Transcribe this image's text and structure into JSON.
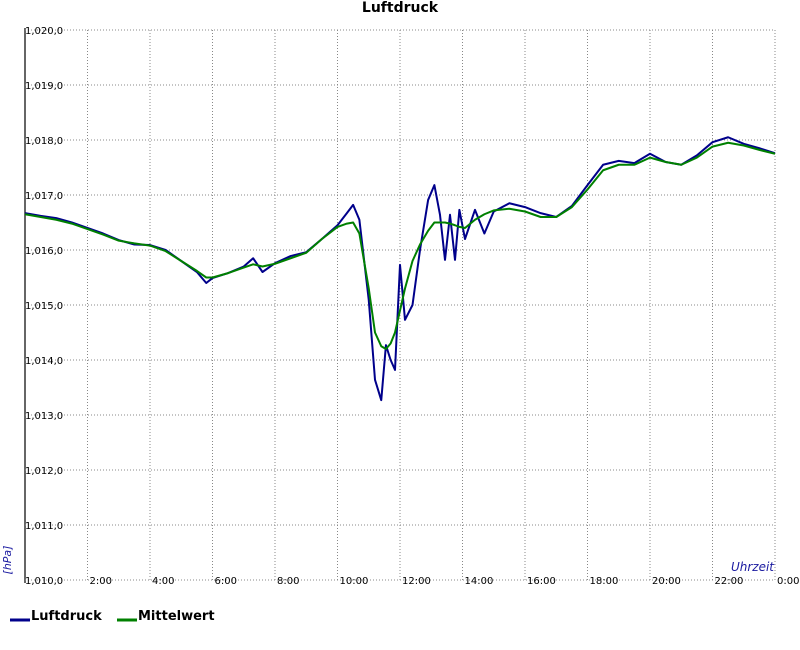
{
  "chart_data": {
    "type": "line",
    "title": "Luftdruck",
    "x_label": "Uhrzeit",
    "y_label": "[hPa]",
    "x": [
      0,
      0.5,
      1,
      1.5,
      2,
      2.5,
      3,
      3.5,
      4,
      4.5,
      5,
      5.5,
      5.8,
      6,
      6.5,
      7,
      7.3,
      7.6,
      8,
      8.5,
      9,
      9.5,
      10,
      10.3,
      10.5,
      10.7,
      11,
      11.2,
      11.4,
      11.55,
      11.7,
      11.84,
      12,
      12.16,
      12.4,
      12.64,
      12.9,
      13.1,
      13.28,
      13.44,
      13.6,
      13.76,
      13.9,
      14.08,
      14.4,
      14.7,
      15,
      15.5,
      16,
      16.5,
      17,
      17.5,
      18,
      18.5,
      19,
      19.5,
      20,
      20.5,
      21,
      21.5,
      22,
      22.5,
      23,
      23.5,
      24
    ],
    "series": [
      {
        "name": "Luftdruck",
        "color": "#00008b",
        "values": [
          1016.67,
          1016.62,
          1016.58,
          1016.5,
          1016.4,
          1016.3,
          1016.18,
          1016.1,
          1016.09,
          1016.0,
          1015.8,
          1015.6,
          1015.4,
          1015.49,
          1015.58,
          1015.7,
          1015.85,
          1015.6,
          1015.76,
          1015.89,
          1015.96,
          1016.2,
          1016.45,
          1016.67,
          1016.82,
          1016.55,
          1015.09,
          1013.64,
          1013.27,
          1014.27,
          1014.0,
          1013.82,
          1015.73,
          1014.73,
          1015.0,
          1016.0,
          1016.91,
          1017.18,
          1016.64,
          1015.82,
          1016.64,
          1015.82,
          1016.73,
          1016.2,
          1016.73,
          1016.3,
          1016.7,
          1016.85,
          1016.78,
          1016.67,
          1016.6,
          1016.8,
          1017.18,
          1017.55,
          1017.62,
          1017.58,
          1017.75,
          1017.6,
          1017.55,
          1017.72,
          1017.96,
          1018.05,
          1017.93,
          1017.85,
          1017.76
        ]
      },
      {
        "name": "Mittelwert",
        "color": "#008000",
        "values": [
          1016.65,
          1016.6,
          1016.55,
          1016.48,
          1016.38,
          1016.28,
          1016.17,
          1016.12,
          1016.08,
          1015.98,
          1015.8,
          1015.62,
          1015.5,
          1015.5,
          1015.58,
          1015.68,
          1015.74,
          1015.7,
          1015.75,
          1015.85,
          1015.95,
          1016.2,
          1016.42,
          1016.48,
          1016.5,
          1016.3,
          1015.3,
          1014.5,
          1014.25,
          1014.2,
          1014.3,
          1014.5,
          1014.9,
          1015.3,
          1015.8,
          1016.1,
          1016.35,
          1016.5,
          1016.5,
          1016.5,
          1016.48,
          1016.45,
          1016.42,
          1016.4,
          1016.55,
          1016.65,
          1016.72,
          1016.75,
          1016.7,
          1016.6,
          1016.6,
          1016.78,
          1017.1,
          1017.45,
          1017.55,
          1017.55,
          1017.68,
          1017.6,
          1017.55,
          1017.68,
          1017.88,
          1017.95,
          1017.9,
          1017.82,
          1017.75
        ]
      }
    ],
    "xlim": [
      0,
      24
    ],
    "xticks": [
      {
        "value": 2,
        "label": "2:00"
      },
      {
        "value": 4,
        "label": "4:00"
      },
      {
        "value": 6,
        "label": "6:00"
      },
      {
        "value": 8,
        "label": "8:00"
      },
      {
        "value": 10,
        "label": "10:00"
      },
      {
        "value": 12,
        "label": "12:00"
      },
      {
        "value": 14,
        "label": "14:00"
      },
      {
        "value": 16,
        "label": "16:00"
      },
      {
        "value": 18,
        "label": "18:00"
      },
      {
        "value": 20,
        "label": "20:00"
      },
      {
        "value": 22,
        "label": "22:00"
      },
      {
        "value": 24,
        "label": "0:00"
      }
    ],
    "ylim": [
      1010,
      1020
    ],
    "yticks": [
      {
        "value": 1010,
        "label": "1,010,0"
      },
      {
        "value": 1011,
        "label": "1,011,0"
      },
      {
        "value": 1012,
        "label": "1,012,0"
      },
      {
        "value": 1013,
        "label": "1,013,0"
      },
      {
        "value": 1014,
        "label": "1,014,0"
      },
      {
        "value": 1015,
        "label": "1,015,0"
      },
      {
        "value": 1016,
        "label": "1,016,0"
      },
      {
        "value": 1017,
        "label": "1,017,0"
      },
      {
        "value": 1018,
        "label": "1,018,0"
      },
      {
        "value": 1019,
        "label": "1,019,0"
      },
      {
        "value": 1020,
        "label": "1,020,0"
      }
    ],
    "grid": true
  }
}
